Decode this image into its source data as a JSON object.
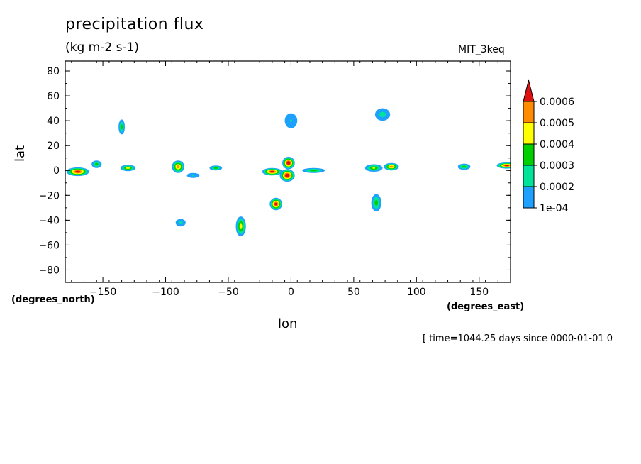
{
  "chart_data": {
    "type": "heatmap",
    "title": "precipitation flux",
    "units": "(kg m-2 s-1)",
    "model": "MIT_3keq",
    "xlabel": "lon",
    "ylabel": "lat",
    "x_units": "(degrees_east)",
    "y_units": "(degrees_north)",
    "xlim": [
      -180,
      175
    ],
    "ylim": [
      -90,
      88
    ],
    "x_ticks": [
      -150,
      -100,
      -50,
      0,
      50,
      100,
      150
    ],
    "y_ticks": [
      80,
      60,
      40,
      20,
      0,
      -20,
      -40,
      -60,
      -80
    ],
    "colorbar": {
      "labels": [
        "0.0006",
        "0.0005",
        "0.0004",
        "0.0003",
        "0.0002",
        "1e-04"
      ],
      "colors": [
        "#ff8c00",
        "#ffff00",
        "#00d000",
        "#00e39a",
        "#1ea0ff"
      ],
      "over_color": "#e01010"
    },
    "blobs": [
      {
        "lon": -170,
        "lat": -1,
        "rlon": 9,
        "rlat": 3.5,
        "max": 0.00065
      },
      {
        "lon": -155,
        "lat": 5,
        "rlon": 4,
        "rlat": 3,
        "max": 0.00035
      },
      {
        "lon": -130,
        "lat": 2,
        "rlon": 6,
        "rlat": 2.5,
        "max": 0.00045
      },
      {
        "lon": -90,
        "lat": 3,
        "rlon": 5,
        "rlat": 5,
        "max": 0.00055
      },
      {
        "lon": -78,
        "lat": -4,
        "rlon": 5,
        "rlat": 2,
        "max": 0.0002
      },
      {
        "lon": -60,
        "lat": 2,
        "rlon": 5,
        "rlat": 2,
        "max": 0.00035
      },
      {
        "lon": -135,
        "lat": 35,
        "rlon": 2.5,
        "rlat": 6,
        "max": 0.00035
      },
      {
        "lon": -15,
        "lat": -1,
        "rlon": 8,
        "rlat": 3,
        "max": 0.00065
      },
      {
        "lon": -2,
        "lat": 6,
        "rlon": 5,
        "rlat": 5,
        "max": 0.0007
      },
      {
        "lon": -3,
        "lat": -4,
        "rlon": 6,
        "rlat": 5,
        "max": 0.0007
      },
      {
        "lon": 18,
        "lat": 0,
        "rlon": 9,
        "rlat": 2,
        "max": 0.00035
      },
      {
        "lon": -12,
        "lat": -27,
        "rlon": 5,
        "rlat": 5,
        "max": 0.00065
      },
      {
        "lon": -40,
        "lat": -45,
        "rlon": 4,
        "rlat": 8,
        "max": 0.00045
      },
      {
        "lon": 0,
        "lat": 40,
        "rlon": 5,
        "rlat": 6,
        "max": 0.0002
      },
      {
        "lon": 66,
        "lat": 2,
        "rlon": 7,
        "rlat": 3,
        "max": 0.0004
      },
      {
        "lon": 80,
        "lat": 3,
        "rlon": 6,
        "rlat": 3,
        "max": 0.00055
      },
      {
        "lon": 68,
        "lat": -26,
        "rlon": 4,
        "rlat": 7,
        "max": 0.00035
      },
      {
        "lon": 73,
        "lat": 45,
        "rlon": 6,
        "rlat": 5,
        "max": 0.00025
      },
      {
        "lon": 138,
        "lat": 3,
        "rlon": 5,
        "rlat": 2.5,
        "max": 0.00035
      },
      {
        "lon": 172,
        "lat": 4,
        "rlon": 8,
        "rlat": 2.5,
        "max": 0.00065
      },
      {
        "lon": -88,
        "lat": -42,
        "rlon": 4,
        "rlat": 3,
        "max": 0.00025
      }
    ]
  },
  "timestamp": "[ time=1044.25 days since 0000-01-01 0"
}
